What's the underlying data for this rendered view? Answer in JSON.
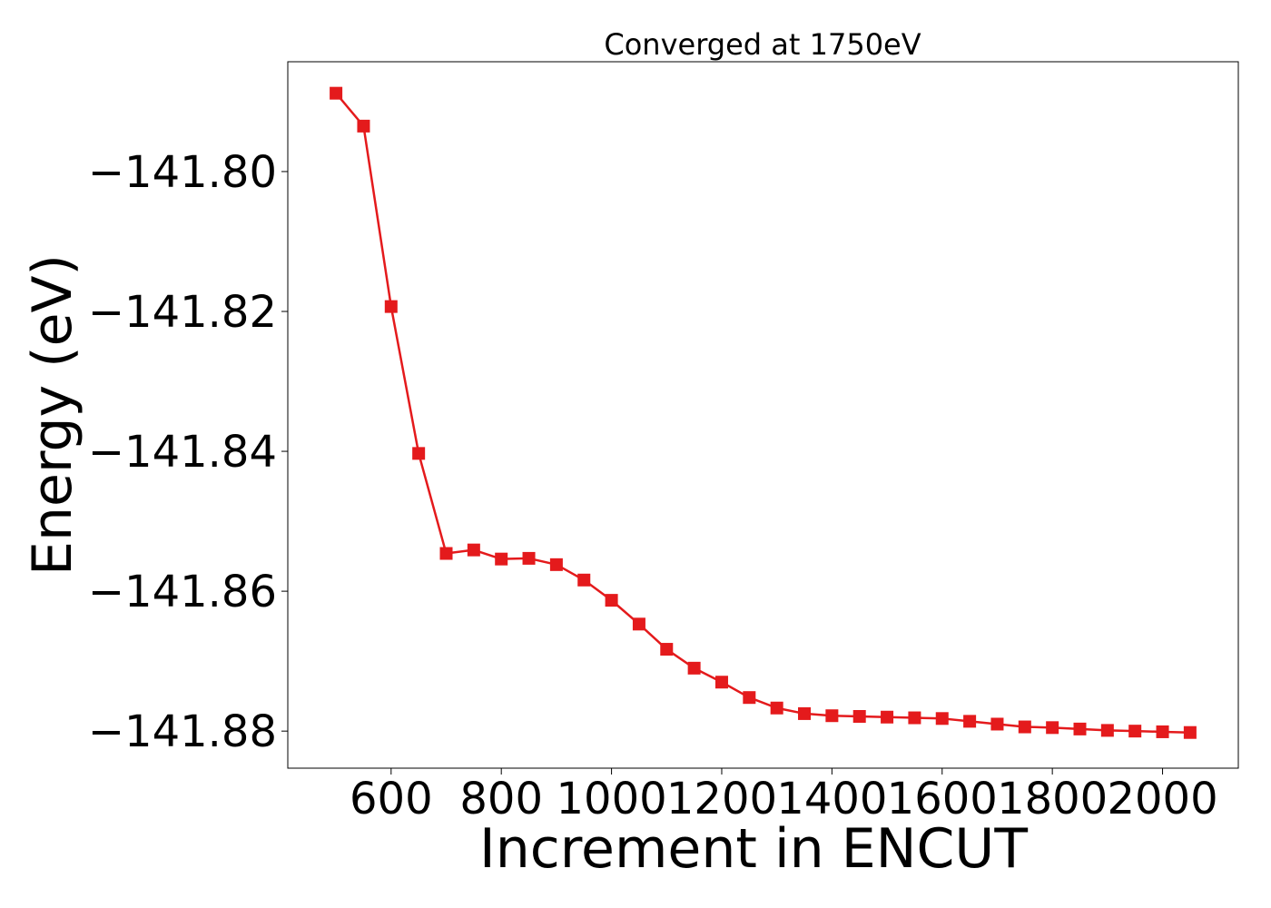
{
  "chart_data": {
    "type": "line",
    "title": "Converged at 1750eV",
    "xlabel": "Increment in ENCUT",
    "ylabel": "Energy (eV)",
    "xlim": [
      412.5,
      2137.5
    ],
    "ylim": [
      -141.8853,
      -141.7843
    ],
    "x_ticks": [
      600,
      800,
      1000,
      1200,
      1400,
      1600,
      1800,
      2000
    ],
    "y_ticks": [
      -141.8,
      -141.82,
      -141.84,
      -141.86,
      -141.88
    ],
    "y_tick_labels": [
      "−141.80",
      "−141.82",
      "−141.84",
      "−141.86",
      "−141.88"
    ],
    "grid": false,
    "marker": "square",
    "series": [
      {
        "color": "#e41a1c",
        "x": [
          500,
          550,
          600,
          650,
          700,
          750,
          800,
          850,
          900,
          950,
          1000,
          1050,
          1100,
          1150,
          1200,
          1250,
          1300,
          1350,
          1400,
          1450,
          1500,
          1550,
          1600,
          1650,
          1700,
          1750,
          1800,
          1850,
          1900,
          1950,
          2000,
          2050
        ],
        "y": [
          -141.7888,
          -141.7935,
          -141.8193,
          -141.8403,
          -141.8546,
          -141.8541,
          -141.8554,
          -141.8553,
          -141.8562,
          -141.8584,
          -141.8613,
          -141.8647,
          -141.8683,
          -141.871,
          -141.873,
          -141.8752,
          -141.8767,
          -141.8775,
          -141.8778,
          -141.8779,
          -141.878,
          -141.8781,
          -141.8782,
          -141.8786,
          -141.879,
          -141.8794,
          -141.8795,
          -141.8797,
          -141.8799,
          -141.88,
          -141.8801,
          -141.8802
        ]
      }
    ]
  }
}
